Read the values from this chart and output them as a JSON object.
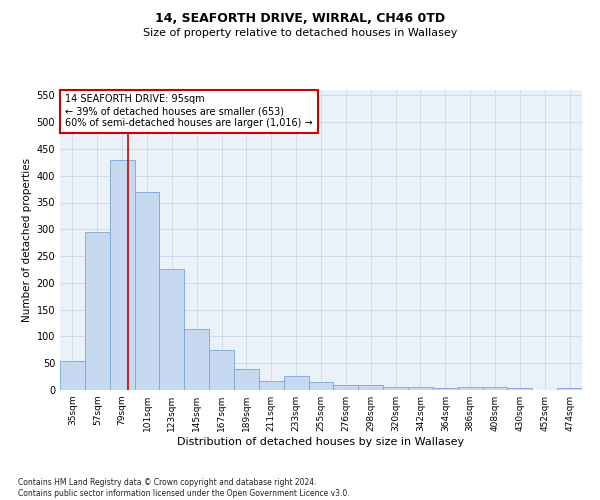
{
  "title": "14, SEAFORTH DRIVE, WIRRAL, CH46 0TD",
  "subtitle": "Size of property relative to detached houses in Wallasey",
  "xlabel": "Distribution of detached houses by size in Wallasey",
  "ylabel": "Number of detached properties",
  "categories": [
    "35sqm",
    "57sqm",
    "79sqm",
    "101sqm",
    "123sqm",
    "145sqm",
    "167sqm",
    "189sqm",
    "211sqm",
    "233sqm",
    "255sqm",
    "276sqm",
    "298sqm",
    "320sqm",
    "342sqm",
    "364sqm",
    "386sqm",
    "408sqm",
    "430sqm",
    "452sqm",
    "474sqm"
  ],
  "values": [
    55,
    295,
    430,
    370,
    225,
    113,
    75,
    40,
    16,
    26,
    15,
    9,
    9,
    6,
    5,
    4,
    5,
    5,
    3,
    0,
    3
  ],
  "bar_color": "#c6d9f0",
  "bar_edge_color": "#7ba7d4",
  "ylim": [
    0,
    560
  ],
  "yticks": [
    0,
    50,
    100,
    150,
    200,
    250,
    300,
    350,
    400,
    450,
    500,
    550
  ],
  "grid_color": "#c8d8e8",
  "annotation_text": "14 SEAFORTH DRIVE: 95sqm\n← 39% of detached houses are smaller (653)\n60% of semi-detached houses are larger (1,016) →",
  "annotation_box_color": "#ffffff",
  "annotation_box_edge": "#cc0000",
  "footnote": "Contains HM Land Registry data © Crown copyright and database right 2024.\nContains public sector information licensed under the Open Government Licence v3.0.",
  "bg_color": "#ffffff",
  "plot_bg_color": "#eaf1f8",
  "title_fontsize": 9,
  "subtitle_fontsize": 8,
  "ylabel_fontsize": 7.5,
  "xlabel_fontsize": 8,
  "ytick_fontsize": 7,
  "xtick_fontsize": 6.5,
  "footnote_fontsize": 5.5,
  "annotation_fontsize": 7
}
